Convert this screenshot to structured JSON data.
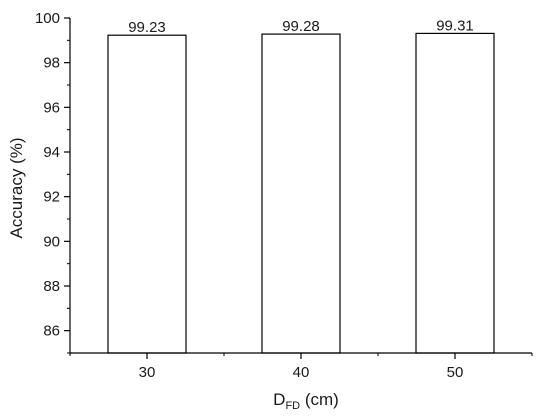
{
  "chart_data": {
    "type": "bar",
    "categories": [
      "30",
      "40",
      "50"
    ],
    "values": [
      99.23,
      99.28,
      99.31
    ],
    "data_labels": [
      "99.23",
      "99.28",
      "99.31"
    ],
    "ylabel": "Accuracy (%)",
    "xlabel": {
      "main": "D",
      "subscript": "FD",
      "suffix": " (cm)"
    },
    "ylim": [
      85,
      100
    ],
    "y_ticks": [
      86,
      88,
      90,
      92,
      94,
      96,
      98,
      100
    ],
    "y_tick_labels": [
      "86",
      "88",
      "90",
      "92",
      "94",
      "96",
      "98",
      "100"
    ],
    "grid": false,
    "legend": "none",
    "colors": {
      "bar_fill": "#ffffff",
      "bar_stroke": "#000000",
      "axis": "#000000"
    }
  }
}
